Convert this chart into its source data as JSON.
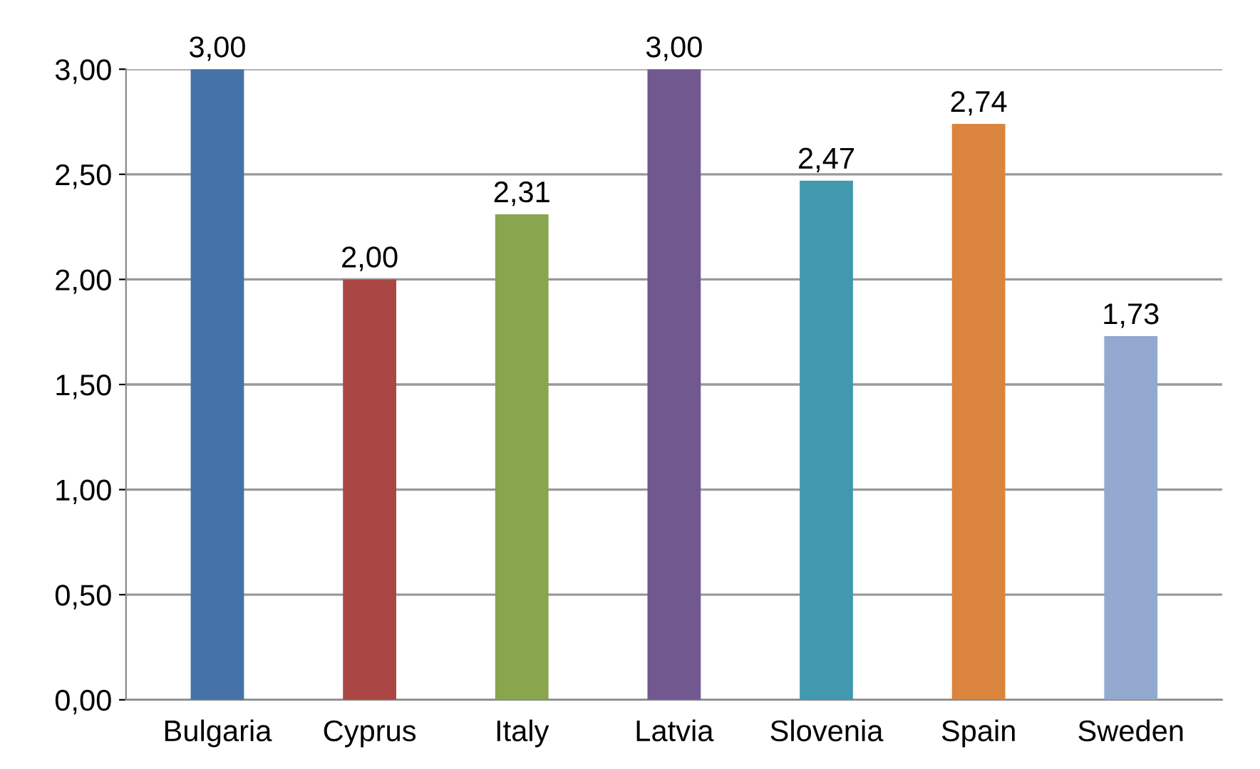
{
  "chart_data": {
    "type": "bar",
    "categories": [
      "Bulgaria",
      "Cyprus",
      "Italy",
      "Latvia",
      "Slovenia",
      "Spain",
      "Sweden"
    ],
    "values": [
      3.0,
      2.0,
      2.31,
      3.0,
      2.47,
      2.74,
      1.73
    ],
    "value_labels": [
      "3,00",
      "2,00",
      "2,31",
      "3,00",
      "2,47",
      "2,74",
      "1,73"
    ],
    "colors": [
      "#4572a7",
      "#aa4643",
      "#89a54e",
      "#71588f",
      "#4198af",
      "#db843d",
      "#93a9cf"
    ],
    "ylim": [
      0,
      3.0
    ],
    "yticks": [
      {
        "value": 0,
        "label": "0,00"
      },
      {
        "value": 0.5,
        "label": "0,50"
      },
      {
        "value": 1.0,
        "label": "1,00"
      },
      {
        "value": 1.5,
        "label": "1,50"
      },
      {
        "value": 2.0,
        "label": "2,00"
      },
      {
        "value": 2.5,
        "label": "2,50"
      },
      {
        "value": 3.0,
        "label": "3,00"
      }
    ],
    "grid": "y",
    "legend": false
  }
}
